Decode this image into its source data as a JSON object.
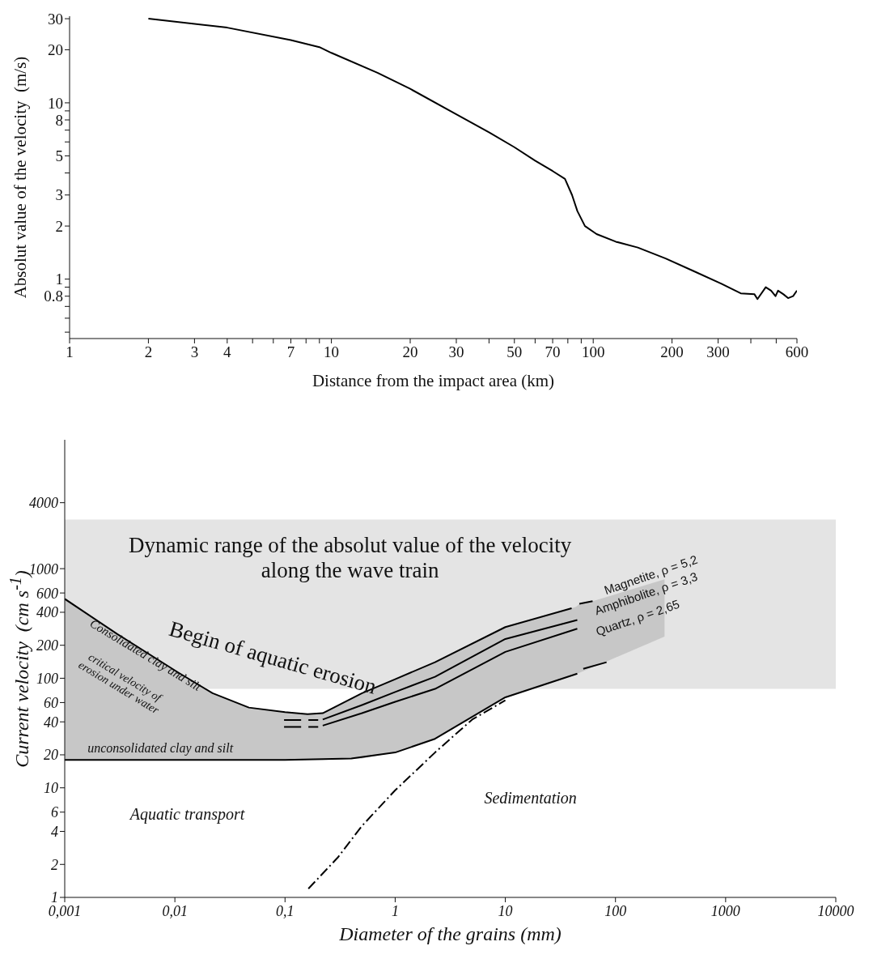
{
  "chart_data": [
    {
      "type": "line",
      "xlabel": "Distance from the impact area (km)",
      "ylabel": "Absolut value of the velocity  (m/s)",
      "log": "xy",
      "xlim": [
        1,
        600
      ],
      "ylim": [
        0.46,
        31
      ],
      "xticks": [
        1,
        2,
        3,
        4,
        {
          "value": 5,
          "label": null
        },
        {
          "value": 6,
          "label": null
        },
        7,
        {
          "value": 8,
          "label": null
        },
        {
          "value": 9,
          "label": null
        },
        10,
        20,
        30,
        {
          "value": 40,
          "label": null
        },
        50,
        {
          "value": 60,
          "label": null
        },
        70,
        {
          "value": 80,
          "label": null
        },
        {
          "value": 90,
          "label": null
        },
        100,
        200,
        300,
        {
          "value": 400,
          "label": null
        },
        {
          "value": 500,
          "label": null
        },
        600
      ],
      "yticks": [
        {
          "value": 0.5,
          "label": null
        },
        {
          "value": 0.6,
          "label": null
        },
        {
          "value": 0.7,
          "label": null
        },
        0.8,
        {
          "value": 0.9,
          "label": null
        },
        1,
        2,
        3,
        {
          "value": 4,
          "label": null
        },
        5,
        {
          "value": 6,
          "label": null
        },
        {
          "value": 7,
          "label": null
        },
        8,
        {
          "value": 9,
          "label": null
        },
        10,
        20,
        30
      ],
      "series": [
        {
          "color": "#000000",
          "x": [
            2,
            4,
            7,
            9,
            10,
            15,
            20,
            30,
            40,
            50,
            60,
            70,
            78,
            83,
            87,
            93,
            103,
            122,
            148,
            189,
            242,
            309,
            366,
            413,
            424,
            456,
            478,
            497,
            508,
            533,
            555,
            580,
            600
          ],
          "values": [
            30,
            26.7,
            22.7,
            20.7,
            19.2,
            14.8,
            12,
            8.6,
            6.8,
            5.6,
            4.7,
            4.1,
            3.7,
            3.0,
            2.43,
            2.0,
            1.8,
            1.63,
            1.51,
            1.31,
            1.11,
            0.94,
            0.83,
            0.82,
            0.77,
            0.9,
            0.86,
            0.8,
            0.86,
            0.82,
            0.78,
            0.8,
            0.86
          ]
        }
      ]
    },
    {
      "type": "line",
      "xlabel": "Diameter of the grains (mm)",
      "ylabel": "Current velocity  (cm s$^{-1}$)",
      "log": "xy",
      "xlim": [
        0.001,
        10000
      ],
      "ylim": [
        1,
        15000
      ],
      "xticks": [
        {
          "value": 0.001,
          "label": "0,001"
        },
        {
          "value": 0.01,
          "label": "0,01"
        },
        {
          "value": 0.1,
          "label": "0,1"
        },
        1,
        10,
        100,
        1000,
        10000
      ],
      "yticks": [
        1,
        2,
        4,
        6,
        10,
        20,
        40,
        60,
        100,
        200,
        400,
        600,
        1000,
        4000
      ],
      "bands": [
        {
          "axis": "y",
          "from": 80,
          "to": 2800,
          "label": "Dynamic range of the absolut value of the velocity along the wave train",
          "color": "#e4e4e4"
        }
      ],
      "series": [
        {
          "color": "#000000",
          "x": [
            0.001,
            0.003,
            0.0107,
            0.022,
            0.047,
            0.1,
            0.16,
            0.22,
            0.5,
            1,
            2.3,
            10,
            40,
            44,
            47,
            62,
            80,
            279
          ],
          "values": [
            530,
            253,
            113,
            73,
            54,
            49,
            47,
            48,
            73,
            98,
            140,
            293,
            435,
            null,
            478,
            505,
            null,
            null
          ],
          "lower": [
            18,
            18,
            18,
            18,
            18,
            18,
            18,
            18,
            18.5,
            21,
            28,
            67,
            105,
            109,
            112,
            126,
            140,
            240
          ],
          "upper": [
            530,
            253,
            113,
            73,
            54,
            49,
            47,
            48,
            73,
            98,
            140,
            293,
            435,
            450,
            478,
            505,
            545,
            800
          ]
        },
        {
          "color": "#000000",
          "x": [
            0.098,
            0.14,
            0.15,
            0.163,
            0.2,
            0.21,
            0.22,
            0.5,
            1,
            2.3,
            10,
            45
          ],
          "values": [
            41.5,
            41.5,
            null,
            41.5,
            41.5,
            null,
            42,
            57,
            75,
            103,
            228,
            340
          ]
        },
        {
          "color": "#000000",
          "x": [
            0.098,
            0.14,
            0.15,
            0.163,
            0.2,
            0.21,
            0.22,
            0.5,
            1,
            2.3,
            10,
            45
          ],
          "values": [
            36,
            36,
            null,
            36,
            36,
            null,
            37,
            48,
            61,
            80,
            174,
            283
          ]
        },
        {
          "color": "#000000",
          "x": [
            0.001,
            0.1,
            0.4,
            1,
            2.3,
            10,
            45,
            48.5,
            51,
            83
          ],
          "values": [
            18,
            18,
            18.5,
            21,
            28,
            67,
            110,
            null,
            122,
            140
          ]
        },
        {
          "color": "#000000",
          "line_style": "dashdot",
          "x": [
            0.163,
            0.3,
            0.5,
            1,
            2.3,
            5,
            10
          ],
          "values": [
            1.2,
            2.3,
            4.5,
            9.5,
            21,
            42,
            63
          ]
        }
      ],
      "annotations": [
        "Begin of aquatic erosion",
        "Consolidated clay and silt",
        "critical velocity of erosion under water",
        "unconsolidated clay and silt",
        "Aquatic transport",
        "Sedimentation",
        "Magnetite, ρ = 5,2",
        "Amphibolite, ρ = 3,3",
        "Quartz, ρ = 2,65"
      ]
    }
  ]
}
